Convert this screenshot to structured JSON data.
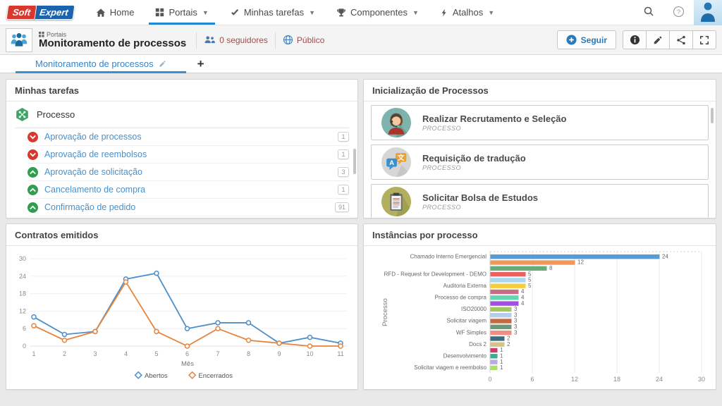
{
  "navbar": {
    "logo": {
      "soft": "Soft",
      "expert": "Expert"
    },
    "items": [
      {
        "id": "home",
        "label": "Home",
        "icon": "home-icon",
        "caret": false,
        "active": false
      },
      {
        "id": "portais",
        "label": "Portais",
        "icon": "portals-icon",
        "caret": true,
        "active": true
      },
      {
        "id": "minhas-tarefas",
        "label": "Minhas tarefas",
        "icon": "tasks-check-icon",
        "caret": true,
        "active": false
      },
      {
        "id": "componentes",
        "label": "Componentes",
        "icon": "trophy-icon",
        "caret": true,
        "active": false
      },
      {
        "id": "atalhos",
        "label": "Atalhos",
        "icon": "lightning-icon",
        "caret": true,
        "active": false
      }
    ]
  },
  "header": {
    "breadcrumb": "Portais",
    "title": "Monitoramento de processos",
    "followers": "0 seguidores",
    "visibility": "Público",
    "follow_button": "Seguir"
  },
  "tabs": {
    "active": "Monitoramento de processos",
    "add": "+"
  },
  "panels": {
    "tasks": {
      "title": "Minhas tarefas",
      "group": "Processo",
      "items": [
        {
          "label": "Aprovação de processos",
          "count": "1",
          "trend": "down"
        },
        {
          "label": "Aprovação de reembolsos",
          "count": "1",
          "trend": "down"
        },
        {
          "label": "Aprovação de solicitação",
          "count": "3",
          "trend": "up"
        },
        {
          "label": "Cancelamento de compra",
          "count": "1",
          "trend": "up"
        },
        {
          "label": "Confirmação de pedido",
          "count": "91",
          "trend": "up"
        }
      ]
    },
    "process_start": {
      "title": "Inicialização de Processos",
      "cards": [
        {
          "title": "Realizar Recrutamento e Seleção",
          "subtitle": "PROCESSO",
          "avatar": "recruiter-avatar"
        },
        {
          "title": "Requisição de tradução",
          "subtitle": "PROCESSO",
          "avatar": "translation-avatar"
        },
        {
          "title": "Solicitar Bolsa de Estudos",
          "subtitle": "PROCESSO",
          "avatar": "clipboard-avatar"
        }
      ]
    },
    "contracts": {
      "title": "Contratos emitidos"
    },
    "instances": {
      "title": "Instâncias por processo"
    }
  },
  "chart_data": [
    {
      "type": "line",
      "title": "Contratos emitidos",
      "xlabel": "Mês",
      "x": [
        1,
        2,
        3,
        4,
        5,
        6,
        7,
        8,
        9,
        10,
        11
      ],
      "ylim": [
        0,
        30
      ],
      "yticks": [
        0,
        6,
        12,
        18,
        24,
        30
      ],
      "grid": true,
      "legend_position": "bottom",
      "series": [
        {
          "name": "Abertos",
          "color": "#4c8fc9",
          "values": [
            10,
            4,
            5,
            23,
            25,
            6,
            8,
            8,
            1,
            3,
            1
          ]
        },
        {
          "name": "Encerrados",
          "color": "#e8833d",
          "values": [
            7,
            2,
            5,
            22,
            5,
            0,
            6,
            2,
            1,
            0,
            0
          ]
        }
      ]
    },
    {
      "type": "bar",
      "orientation": "horizontal",
      "title": "Instâncias por processo",
      "ylabel": "Processo",
      "xlim": [
        0,
        30
      ],
      "xticks": [
        0,
        6,
        12,
        18,
        24,
        30
      ],
      "grid": true,
      "bars": [
        {
          "label": "Chamado Interno Emergencial",
          "value": 24,
          "color": "#5b9bd5"
        },
        {
          "label": "",
          "value": 12,
          "color": "#f0975a"
        },
        {
          "label": "",
          "value": 8,
          "color": "#67ad78"
        },
        {
          "label": "RFD - Request for Development - DEMO",
          "value": 5,
          "color": "#ef5e5e"
        },
        {
          "label": "",
          "value": 5,
          "color": "#a9d7ef"
        },
        {
          "label": "Auditoria Externa",
          "value": 5,
          "color": "#f3cf3e"
        },
        {
          "label": "",
          "value": 4,
          "color": "#c76d87"
        },
        {
          "label": "Processo de compra",
          "value": 4,
          "color": "#62d6b0"
        },
        {
          "label": "",
          "value": 4,
          "color": "#a24fe0"
        },
        {
          "label": "ISO20000",
          "value": 3,
          "color": "#a4c763"
        },
        {
          "label": "",
          "value": 3,
          "color": "#b7cde8"
        },
        {
          "label": "Solicitar viagem",
          "value": 3,
          "color": "#c26a42"
        },
        {
          "label": "",
          "value": 3,
          "color": "#6f9878"
        },
        {
          "label": "WF Simples",
          "value": 3,
          "color": "#f08e86"
        },
        {
          "label": "",
          "value": 2,
          "color": "#3d6a7c"
        },
        {
          "label": "Docs 2",
          "value": 2,
          "color": "#d5c287"
        },
        {
          "label": "",
          "value": 1,
          "color": "#cc3d6e"
        },
        {
          "label": "Desenvolvimento",
          "value": 1,
          "color": "#42a98c"
        },
        {
          "label": "",
          "value": 1,
          "color": "#b9aae2"
        },
        {
          "label": "Solicitar viagem e reembolso",
          "value": 1,
          "color": "#abe065"
        }
      ]
    }
  ],
  "colors": {
    "accent": "#1f87d4",
    "link": "#4a90c9",
    "meta_text": "#9e4f4c",
    "page_bg": "#e9e9e9"
  }
}
